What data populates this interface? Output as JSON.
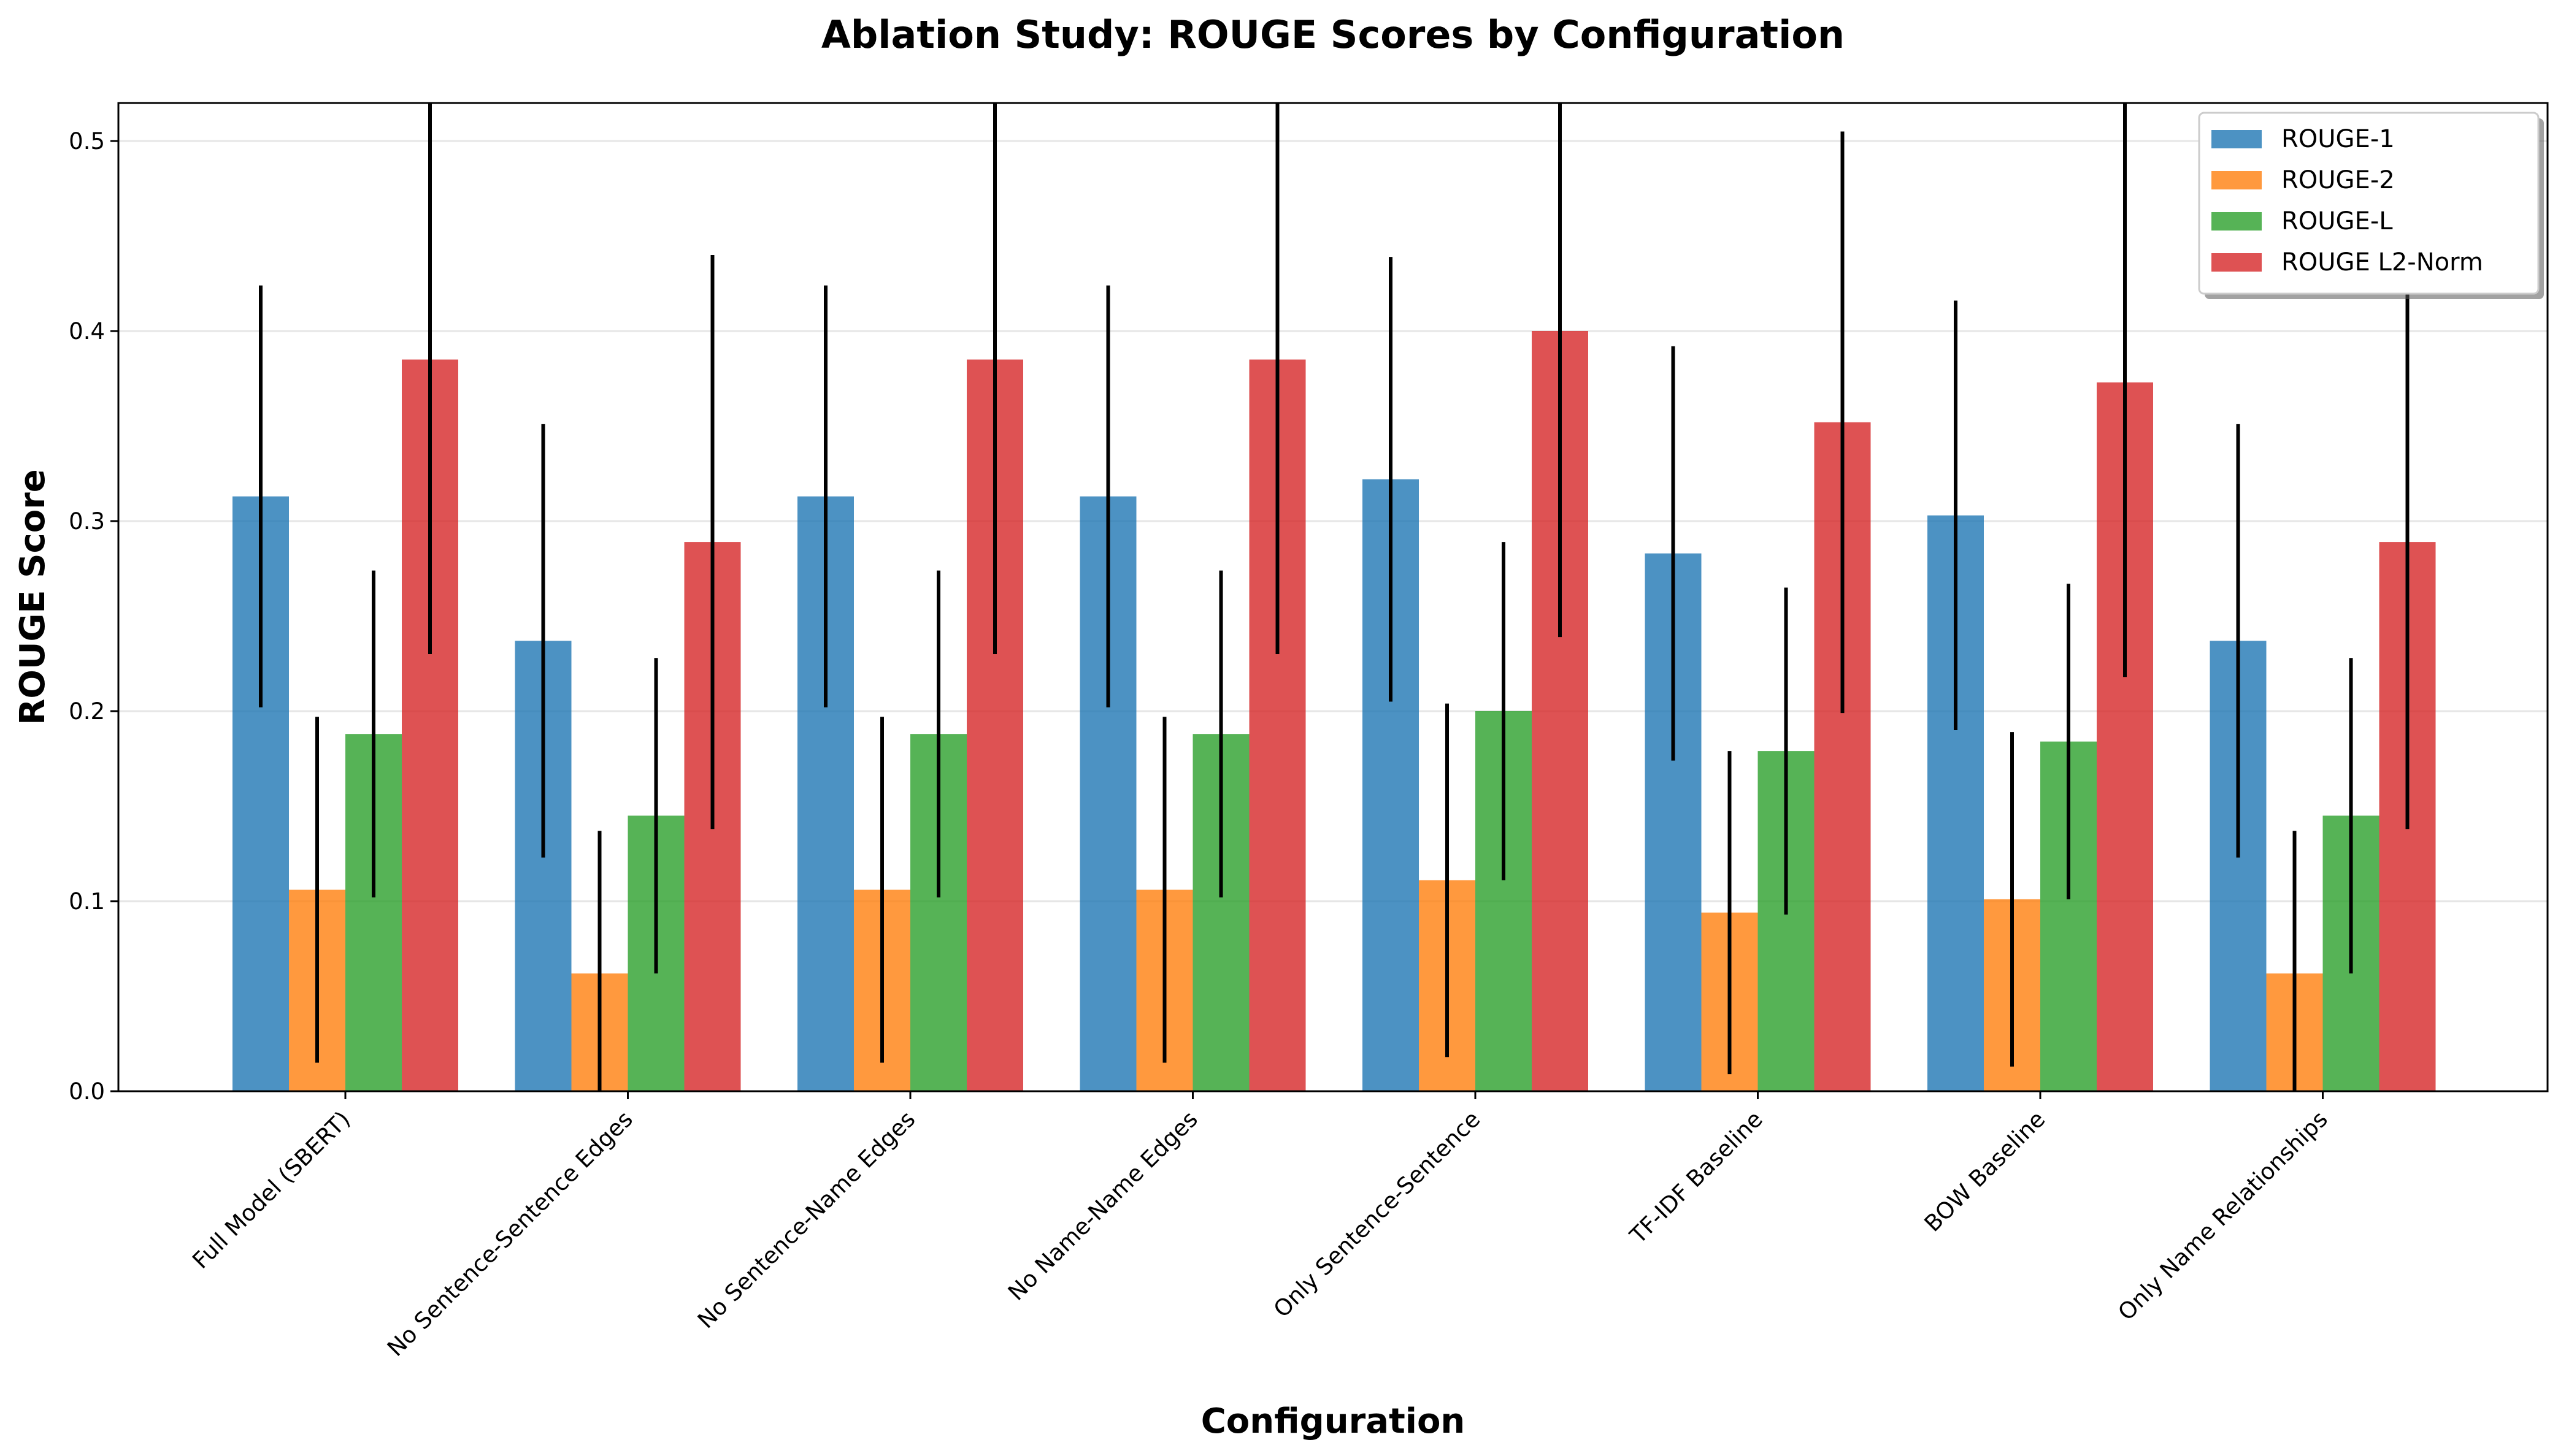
{
  "chart_data": {
    "type": "bar",
    "title": "Ablation Study: ROUGE Scores by Configuration",
    "xlabel": "Configuration",
    "ylabel": "ROUGE Score",
    "ylim": [
      0,
      0.52
    ],
    "yticks": [
      "0.0",
      "0.1",
      "0.2",
      "0.3",
      "0.4",
      "0.5"
    ],
    "grid": "horizontal",
    "legend_position": "top-right",
    "categories": [
      "Full Model (SBERT)",
      "No Sentence-Sentence Edges",
      "No Sentence-Name Edges",
      "No Name-Name Edges",
      "Only Sentence-Sentence",
      "TF-IDF Baseline",
      "BOW Baseline",
      "Only Name Relationships"
    ],
    "series": [
      {
        "name": "ROUGE-1",
        "color": "#1f77b4",
        "values": [
          0.313,
          0.237,
          0.313,
          0.313,
          0.322,
          0.283,
          0.303,
          0.237
        ],
        "errors": [
          0.111,
          0.114,
          0.111,
          0.111,
          0.117,
          0.109,
          0.113,
          0.114
        ]
      },
      {
        "name": "ROUGE-2",
        "color": "#ff7f0e",
        "values": [
          0.106,
          0.062,
          0.106,
          0.106,
          0.111,
          0.094,
          0.101,
          0.062
        ],
        "errors": [
          0.091,
          0.075,
          0.091,
          0.091,
          0.093,
          0.085,
          0.088,
          0.075
        ]
      },
      {
        "name": "ROUGE-L",
        "color": "#2ca02c",
        "values": [
          0.188,
          0.145,
          0.188,
          0.188,
          0.2,
          0.179,
          0.184,
          0.145
        ],
        "errors": [
          0.086,
          0.083,
          0.086,
          0.086,
          0.089,
          0.086,
          0.083,
          0.083
        ]
      },
      {
        "name": "ROUGE L2-Norm",
        "color": "#d62728",
        "values": [
          0.385,
          0.289,
          0.385,
          0.385,
          0.4,
          0.352,
          0.373,
          0.289
        ],
        "errors": [
          0.155,
          0.151,
          0.155,
          0.155,
          0.161,
          0.153,
          0.155,
          0.151
        ]
      }
    ]
  }
}
